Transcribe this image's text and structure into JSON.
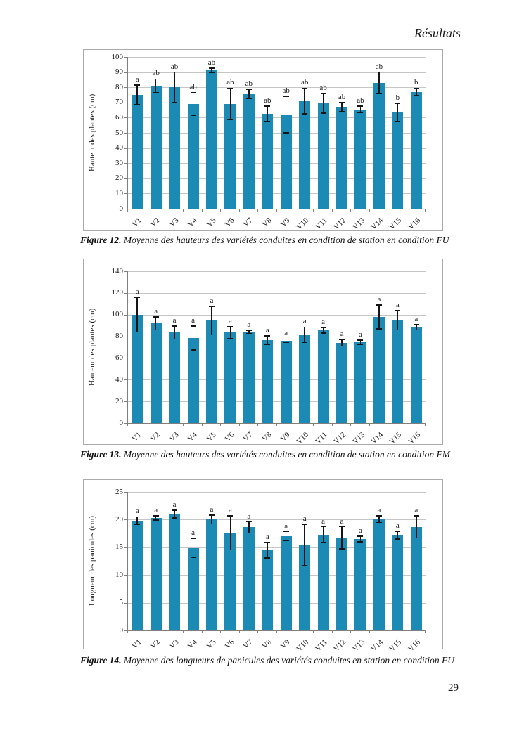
{
  "page": {
    "header": "Résultats",
    "page_number": "29"
  },
  "figures": [
    {
      "label": "Figure 12.",
      "text": " Moyenne des hauteurs des variétés conduites en condition de station en condition FU"
    },
    {
      "label": "Figure 13.",
      "text": " Moyenne des hauteurs des variétés conduites en condition de station en condition FM"
    },
    {
      "label": "Figure 14.",
      "text": " Moyenne des longueurs de panicules des variétés conduites en station en condition FU"
    }
  ],
  "chart_data": [
    {
      "type": "bar",
      "title": "",
      "xlabel": "",
      "ylabel": "Hauteur des plantes (cm)",
      "categories": [
        "V1",
        "V2",
        "V3",
        "V4",
        "V5",
        "V6",
        "V7",
        "V8",
        "V9",
        "V10",
        "V11",
        "V12",
        "V13",
        "V14",
        "V15",
        "V16"
      ],
      "values": [
        75,
        81,
        80,
        69,
        91,
        69,
        75.5,
        62.5,
        62,
        71,
        69.5,
        67,
        65.5,
        83,
        63.5,
        77
      ],
      "errors": [
        6.5,
        4.5,
        10,
        7.5,
        1.5,
        10.5,
        3,
        5,
        12,
        8.5,
        6.5,
        3,
        2,
        7,
        6,
        2.5
      ],
      "sig_letters": [
        "a",
        "ab",
        "ab",
        "ab",
        "ab",
        "ab",
        "ab",
        "ab",
        "ab",
        "ab",
        "ab",
        "ab",
        "ab",
        "ab",
        "b",
        "b"
      ],
      "ylim": [
        0,
        100
      ],
      "ytick_step": 10,
      "bar_color": "#1b8bb5",
      "grid": true,
      "legend": "none"
    },
    {
      "type": "bar",
      "title": "",
      "xlabel": "",
      "ylabel": "Hauteur des plantes (cm)",
      "categories": [
        "V1",
        "V2",
        "V3",
        "V4",
        "V5",
        "V6",
        "V7",
        "V8",
        "V9",
        "V10",
        "V11",
        "V12",
        "V13",
        "V14",
        "V15",
        "V16"
      ],
      "values": [
        100,
        92,
        83.5,
        78.5,
        94.5,
        83.5,
        84,
        76.5,
        76,
        81.5,
        85.5,
        74,
        74.5,
        98,
        95,
        88.5
      ],
      "errors": [
        16,
        6,
        6,
        11,
        13,
        5.5,
        1.5,
        4,
        1.5,
        7,
        2.5,
        3,
        2,
        11,
        9,
        2.5
      ],
      "sig_letters": [
        "a",
        "a",
        "a",
        "a",
        "a",
        "a",
        "a",
        "a",
        "a",
        "a",
        "a",
        "a",
        "a",
        "a",
        "a",
        "a"
      ],
      "ylim": [
        0,
        140
      ],
      "ytick_step": 20,
      "bar_color": "#1b8bb5",
      "grid": true,
      "legend": "none"
    },
    {
      "type": "bar",
      "title": "",
      "xlabel": "",
      "ylabel": "Longueur des panicules (cm)",
      "categories": [
        "V1",
        "V2",
        "V3",
        "V4",
        "V5",
        "V6",
        "V7",
        "V8",
        "V9",
        "V10",
        "V11",
        "V12",
        "V13",
        "V14",
        "V15",
        "V16"
      ],
      "values": [
        19.8,
        20.3,
        21,
        14.9,
        20,
        17.6,
        18.6,
        14.5,
        17,
        15.4,
        17.3,
        16.7,
        16.5,
        20.1,
        17.2,
        18.7
      ],
      "errors": [
        0.7,
        0.4,
        0.7,
        1.7,
        0.8,
        3.1,
        1,
        1.4,
        0.8,
        3.7,
        1.4,
        2,
        0.5,
        0.6,
        0.7,
        2
      ],
      "sig_letters": [
        "a",
        "a",
        "a",
        "a",
        "a",
        "a",
        "a",
        "a",
        "a",
        "a",
        "a",
        "a",
        "a",
        "a",
        "a",
        "a"
      ],
      "ylim": [
        0,
        25
      ],
      "ytick_step": 5,
      "bar_color": "#1b8bb5",
      "grid": true,
      "legend": "none"
    }
  ]
}
